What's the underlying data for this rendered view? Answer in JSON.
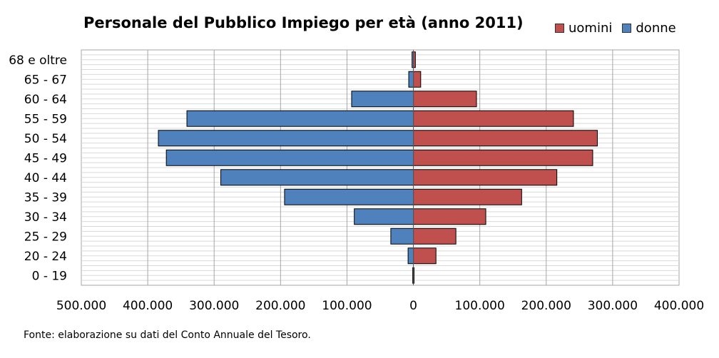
{
  "chart_data": {
    "type": "bar",
    "title": "Personale del Pubblico  Impiego per età (anno 2011)",
    "categories": [
      "68 e oltre",
      "65 - 67",
      "60 - 64",
      "55 - 59",
      "50 - 54",
      "45 - 49",
      "40 - 44",
      "35 - 39",
      "30 - 34",
      "25 - 29",
      "20 - 24",
      "0 - 19"
    ],
    "series": [
      {
        "name": "uomini",
        "color": "#c0504d",
        "values": [
          3000,
          11000,
          95000,
          241000,
          277000,
          270000,
          216000,
          163000,
          109000,
          64000,
          34000,
          1000
        ]
      },
      {
        "name": "donne",
        "color": "#4f81bd",
        "values": [
          2000,
          7000,
          93000,
          341000,
          384000,
          372000,
          290000,
          194000,
          89000,
          34000,
          8000,
          1000
        ]
      }
    ],
    "xlim": [
      -500000,
      400000
    ],
    "xticks": [
      -500000,
      -400000,
      -300000,
      -200000,
      -100000,
      0,
      100000,
      200000,
      300000,
      400000
    ],
    "xtick_labels": [
      "500.000",
      "400.000",
      "300.000",
      "200.000",
      "100.000",
      "0",
      "100.000",
      "200.000",
      "300.000",
      "400.000"
    ],
    "legend_position": "top-right",
    "grid": true
  },
  "source_note": "Fonte: elaborazione su dati  del Conto Annuale del Tesoro."
}
